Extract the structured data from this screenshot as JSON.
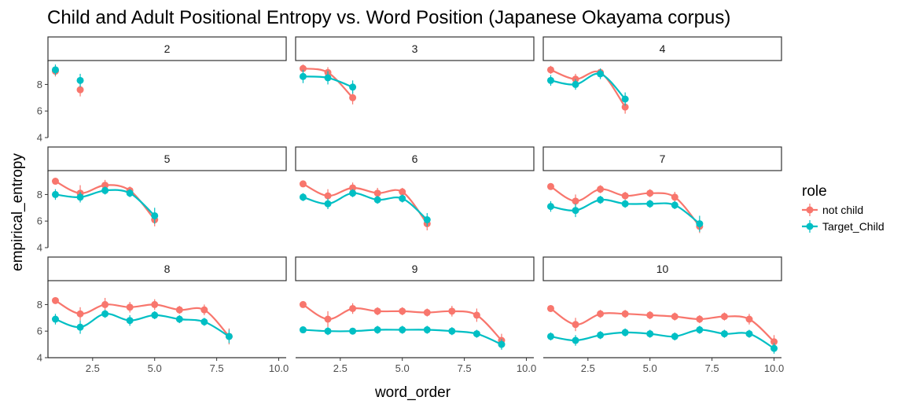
{
  "chart_data": {
    "type": "scatter",
    "title": "Child and Adult Positional Entropy vs. Word Position (Japanese Okayama corpus)",
    "xlabel": "word_order",
    "ylabel": "empirical_entropy",
    "xlim": [
      0.7,
      10.3
    ],
    "ylim": [
      4,
      9.8
    ],
    "x_ticks": [
      2.5,
      5.0,
      7.5,
      10.0
    ],
    "x_tick_labels": [
      "2.5",
      "5.0",
      "7.5",
      "10.0"
    ],
    "y_ticks": [
      4,
      6,
      8
    ],
    "y_tick_labels": [
      "4",
      "6",
      "8"
    ],
    "grid": false,
    "facet_layout": {
      "rows": 3,
      "cols": 3
    },
    "legend": {
      "title": "role",
      "placement": "right",
      "entries": [
        {
          "name": "not child",
          "color": "#F8766D"
        },
        {
          "name": "Target_Child",
          "color": "#00BFC4"
        }
      ]
    },
    "panels": [
      {
        "label": "2",
        "series": [
          {
            "name": "not child",
            "x": [
              1,
              2
            ],
            "y": [
              9.0,
              7.6
            ],
            "err": [
              0.4,
              0.5
            ]
          },
          {
            "name": "Target_Child",
            "x": [
              1,
              2
            ],
            "y": [
              9.1,
              8.3
            ],
            "err": [
              0.4,
              0.5
            ]
          }
        ]
      },
      {
        "label": "3",
        "series": [
          {
            "name": "not child",
            "x": [
              1,
              2,
              3
            ],
            "y": [
              9.2,
              8.9,
              7.0
            ],
            "err": [
              0.3,
              0.4,
              0.5
            ]
          },
          {
            "name": "Target_Child",
            "x": [
              1,
              2,
              3
            ],
            "y": [
              8.6,
              8.5,
              7.8
            ],
            "err": [
              0.5,
              0.5,
              0.5
            ]
          }
        ]
      },
      {
        "label": "4",
        "series": [
          {
            "name": "not child",
            "x": [
              1,
              2,
              3,
              4
            ],
            "y": [
              9.1,
              8.4,
              8.9,
              6.3
            ],
            "err": [
              0.3,
              0.4,
              0.3,
              0.5
            ]
          },
          {
            "name": "Target_Child",
            "x": [
              1,
              2,
              3,
              4
            ],
            "y": [
              8.3,
              8.0,
              8.8,
              6.9
            ],
            "err": [
              0.4,
              0.4,
              0.4,
              0.5
            ]
          }
        ]
      },
      {
        "label": "5",
        "series": [
          {
            "name": "not child",
            "x": [
              1,
              2,
              3,
              4,
              5
            ],
            "y": [
              9.0,
              8.1,
              8.7,
              8.3,
              6.1
            ],
            "err": [
              0.2,
              0.6,
              0.4,
              0.3,
              0.5
            ]
          },
          {
            "name": "Target_Child",
            "x": [
              1,
              2,
              3,
              4,
              5
            ],
            "y": [
              8.0,
              7.8,
              8.3,
              8.1,
              6.4
            ],
            "err": [
              0.4,
              0.4,
              0.3,
              0.3,
              0.6
            ]
          }
        ]
      },
      {
        "label": "6",
        "series": [
          {
            "name": "not child",
            "x": [
              1,
              2,
              3,
              4,
              5,
              6
            ],
            "y": [
              8.8,
              7.9,
              8.5,
              8.1,
              8.2,
              5.8
            ],
            "err": [
              0.2,
              0.5,
              0.4,
              0.4,
              0.3,
              0.5
            ]
          },
          {
            "name": "Target_Child",
            "x": [
              1,
              2,
              3,
              4,
              5,
              6
            ],
            "y": [
              7.8,
              7.3,
              8.1,
              7.6,
              7.7,
              6.1
            ],
            "err": [
              0.3,
              0.4,
              0.3,
              0.3,
              0.3,
              0.5
            ]
          }
        ]
      },
      {
        "label": "7",
        "series": [
          {
            "name": "not child",
            "x": [
              1,
              2,
              3,
              4,
              5,
              6,
              7
            ],
            "y": [
              8.6,
              7.5,
              8.4,
              7.9,
              8.1,
              7.8,
              5.6
            ],
            "err": [
              0.2,
              0.5,
              0.3,
              0.3,
              0.3,
              0.4,
              0.5
            ]
          },
          {
            "name": "Target_Child",
            "x": [
              1,
              2,
              3,
              4,
              5,
              6,
              7
            ],
            "y": [
              7.1,
              6.8,
              7.6,
              7.3,
              7.3,
              7.2,
              5.8
            ],
            "err": [
              0.4,
              0.5,
              0.3,
              0.3,
              0.3,
              0.3,
              0.6
            ]
          }
        ]
      },
      {
        "label": "8",
        "series": [
          {
            "name": "not child",
            "x": [
              1,
              2,
              3,
              4,
              5,
              6,
              7,
              8
            ],
            "y": [
              8.3,
              7.3,
              8.0,
              7.8,
              8.0,
              7.6,
              7.6,
              5.6
            ],
            "err": [
              0.2,
              0.5,
              0.5,
              0.4,
              0.4,
              0.3,
              0.4,
              0.6
            ]
          },
          {
            "name": "Target_Child",
            "x": [
              1,
              2,
              3,
              4,
              5,
              6,
              7,
              8
            ],
            "y": [
              6.9,
              6.3,
              7.3,
              6.8,
              7.2,
              6.9,
              6.7,
              5.6
            ],
            "err": [
              0.4,
              0.5,
              0.3,
              0.4,
              0.3,
              0.3,
              0.3,
              0.5
            ]
          }
        ]
      },
      {
        "label": "9",
        "series": [
          {
            "name": "not child",
            "x": [
              1,
              2,
              3,
              4,
              5,
              6,
              7,
              8,
              9
            ],
            "y": [
              8.0,
              6.9,
              7.7,
              7.5,
              7.5,
              7.4,
              7.5,
              7.2,
              5.3
            ],
            "err": [
              0.2,
              0.6,
              0.4,
              0.3,
              0.3,
              0.3,
              0.4,
              0.5,
              0.5
            ]
          },
          {
            "name": "Target_Child",
            "x": [
              1,
              2,
              3,
              4,
              5,
              6,
              7,
              8,
              9
            ],
            "y": [
              6.1,
              6.0,
              6.0,
              6.1,
              6.1,
              6.1,
              6.0,
              5.8,
              5.0
            ],
            "err": [
              0.2,
              0.3,
              0.2,
              0.3,
              0.3,
              0.3,
              0.3,
              0.3,
              0.4
            ]
          }
        ]
      },
      {
        "label": "10",
        "series": [
          {
            "name": "not child",
            "x": [
              1,
              2,
              3,
              4,
              5,
              6,
              7,
              8,
              9,
              10
            ],
            "y": [
              7.7,
              6.5,
              7.3,
              7.3,
              7.2,
              7.1,
              6.9,
              7.1,
              6.9,
              5.2
            ],
            "err": [
              0.2,
              0.5,
              0.3,
              0.3,
              0.3,
              0.3,
              0.3,
              0.3,
              0.4,
              0.5
            ]
          },
          {
            "name": "Target_Child",
            "x": [
              1,
              2,
              3,
              4,
              5,
              6,
              7,
              8,
              9,
              10
            ],
            "y": [
              5.6,
              5.3,
              5.7,
              5.9,
              5.8,
              5.6,
              6.1,
              5.8,
              5.8,
              4.7
            ],
            "err": [
              0.3,
              0.4,
              0.3,
              0.3,
              0.3,
              0.3,
              0.3,
              0.3,
              0.3,
              0.4
            ]
          }
        ]
      }
    ]
  }
}
